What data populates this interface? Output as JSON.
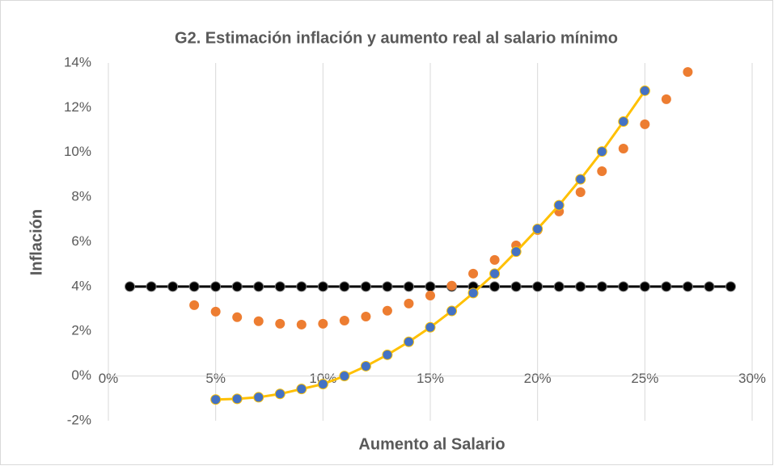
{
  "chart_data": {
    "type": "scatter",
    "title": "G2. Estimación inflación y aumento real al salario mínimo",
    "x_label": "Aumento al Salario",
    "y_label": "Inflación",
    "xlim": [
      0,
      30
    ],
    "xticks": [
      {
        "value": 0,
        "label": "0%"
      },
      {
        "value": 5,
        "label": "5%"
      },
      {
        "value": 10,
        "label": "10%"
      },
      {
        "value": 15,
        "label": "15%"
      },
      {
        "value": 20,
        "label": "20%"
      },
      {
        "value": 25,
        "label": "25%"
      },
      {
        "value": 30,
        "label": "30%"
      }
    ],
    "ylim": [
      -2,
      14
    ],
    "yticks": [
      {
        "value": -2,
        "label": "-2%"
      },
      {
        "value": 0,
        "label": "0%"
      },
      {
        "value": 2,
        "label": "2%"
      },
      {
        "value": 4,
        "label": "4%"
      },
      {
        "value": 6,
        "label": "6%"
      },
      {
        "value": 8,
        "label": "8%"
      },
      {
        "value": 10,
        "label": "10%"
      },
      {
        "value": 12,
        "label": "12%"
      },
      {
        "value": 14,
        "label": "14%"
      }
    ],
    "grid": true,
    "series": [
      {
        "color": "#000000",
        "line_color": "#000000",
        "x": [
          1,
          2,
          3,
          4,
          5,
          6,
          7,
          8,
          9,
          10,
          11,
          12,
          13,
          14,
          15,
          16,
          17,
          18,
          19,
          20,
          21,
          22,
          23,
          24,
          25,
          26,
          27,
          28,
          29
        ],
        "values": [
          4,
          4,
          4,
          4,
          4,
          4,
          4,
          4,
          4,
          4,
          4,
          4,
          4,
          4,
          4,
          4,
          4,
          4,
          4,
          4,
          4,
          4,
          4,
          4,
          4,
          4,
          4,
          4,
          4
        ]
      },
      {
        "color": "#ed7d31",
        "x": [
          4,
          5,
          6,
          7,
          8,
          9,
          10,
          11,
          12,
          13,
          14,
          15,
          16,
          17,
          18,
          19,
          20,
          21,
          22,
          23,
          24,
          25,
          26,
          27
        ],
        "values": [
          3.17,
          2.88,
          2.63,
          2.45,
          2.34,
          2.3,
          2.34,
          2.48,
          2.66,
          2.92,
          3.24,
          3.6,
          4.04,
          4.58,
          5.19,
          5.84,
          6.53,
          7.36,
          8.22,
          9.16,
          10.17,
          11.26,
          12.38,
          13.6
        ]
      },
      {
        "color": "#4472c4",
        "line_color": "#ffc000",
        "x": [
          5,
          6,
          7,
          8,
          9,
          10,
          11,
          12,
          13,
          14,
          15,
          16,
          17,
          18,
          19,
          20,
          21,
          22,
          23,
          24,
          25
        ],
        "values": [
          -1.05,
          -1.02,
          -0.95,
          -0.8,
          -0.58,
          -0.36,
          0,
          0.44,
          0.95,
          1.53,
          2.18,
          2.91,
          3.71,
          4.58,
          5.56,
          6.58,
          7.64,
          8.8,
          10.04,
          11.38,
          12.76
        ]
      }
    ]
  }
}
